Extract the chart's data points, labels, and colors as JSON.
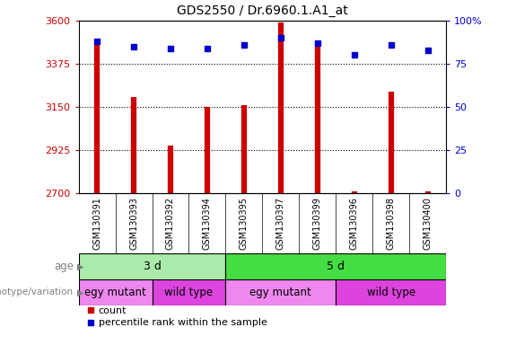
{
  "title": "GDS2550 / Dr.6960.1.A1_at",
  "samples": [
    "GSM130391",
    "GSM130393",
    "GSM130392",
    "GSM130394",
    "GSM130395",
    "GSM130397",
    "GSM130399",
    "GSM130396",
    "GSM130398",
    "GSM130400"
  ],
  "counts": [
    3480,
    3200,
    2950,
    3150,
    3160,
    3590,
    3480,
    2710,
    3230,
    2710
  ],
  "percentile_ranks": [
    88,
    85,
    84,
    84,
    86,
    90,
    87,
    80,
    86,
    83
  ],
  "ylim_left": [
    2700,
    3600
  ],
  "ylim_right": [
    0,
    100
  ],
  "yticks_left": [
    2700,
    2925,
    3150,
    3375,
    3600
  ],
  "yticks_right": [
    0,
    25,
    50,
    75,
    100
  ],
  "ytick_labels_left": [
    "2700",
    "2925",
    "3150",
    "3375",
    "3600"
  ],
  "ytick_labels_right": [
    "0",
    "25",
    "50",
    "75",
    "100%"
  ],
  "bar_color": "#cc0000",
  "dot_color": "#0000cc",
  "age_groups": [
    {
      "label": "3 d",
      "start": 0,
      "end": 4,
      "color": "#aaeaaa"
    },
    {
      "label": "5 d",
      "start": 4,
      "end": 10,
      "color": "#44dd44"
    }
  ],
  "genotype_groups": [
    {
      "label": "egy mutant",
      "start": 0,
      "end": 2,
      "color": "#ee88ee"
    },
    {
      "label": "wild type",
      "start": 2,
      "end": 4,
      "color": "#dd44dd"
    },
    {
      "label": "egy mutant",
      "start": 4,
      "end": 7,
      "color": "#ee88ee"
    },
    {
      "label": "wild type",
      "start": 7,
      "end": 10,
      "color": "#dd44dd"
    }
  ],
  "legend_count_label": "count",
  "legend_percentile_label": "percentile rank within the sample",
  "age_row_label": "age",
  "genotype_row_label": "genotype/variation",
  "background_color": "#ffffff",
  "tick_area_bg": "#cccccc",
  "label_fontsize": 7,
  "axis_fontsize": 8,
  "title_fontsize": 10
}
